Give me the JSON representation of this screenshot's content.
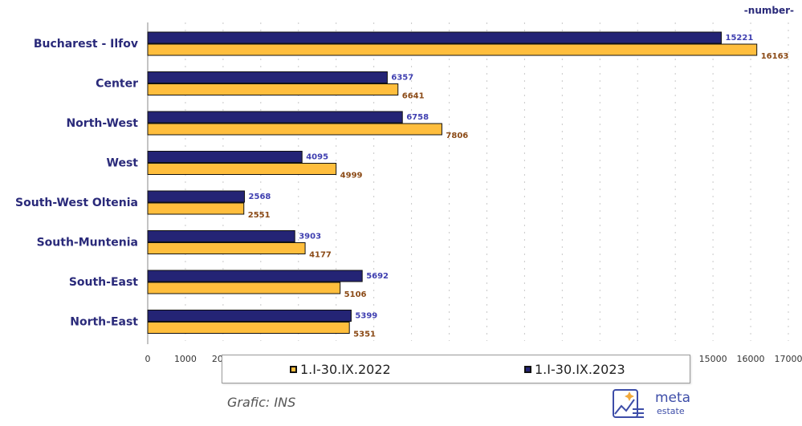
{
  "unit_label": "-number-",
  "source_label": "Grafic: INS",
  "logo": {
    "line1": "meta",
    "line2": "estate"
  },
  "colors": {
    "series_2022": "#ffbe3d",
    "series_2023": "#242475",
    "label_2022": "#8b4a16",
    "label_2023": "#3f3fb0",
    "category_text": "#2a2a7a",
    "logo": "#3d4da8"
  },
  "chart_data": {
    "type": "bar",
    "orientation": "horizontal",
    "categories": [
      "Bucharest - Ilfov",
      "Center",
      "North-West",
      "West",
      "South-West Oltenia",
      "South-Muntenia",
      "South-East",
      "North-East"
    ],
    "series": [
      {
        "name": "1.I-30.IX.2023",
        "values": [
          15221,
          6357,
          6758,
          4095,
          2568,
          3903,
          5692,
          5399
        ]
      },
      {
        "name": "1.I-30.IX.2022",
        "values": [
          16163,
          6641,
          7806,
          4999,
          2551,
          4177,
          5106,
          5351
        ]
      }
    ],
    "xlim": [
      0,
      17000
    ],
    "xticks": [
      0,
      1000,
      2000,
      3000,
      4000,
      5000,
      6000,
      7000,
      8000,
      9000,
      10000,
      11000,
      12000,
      13000,
      14000,
      15000,
      16000,
      17000
    ],
    "legend_position": "bottom",
    "grid": true
  }
}
